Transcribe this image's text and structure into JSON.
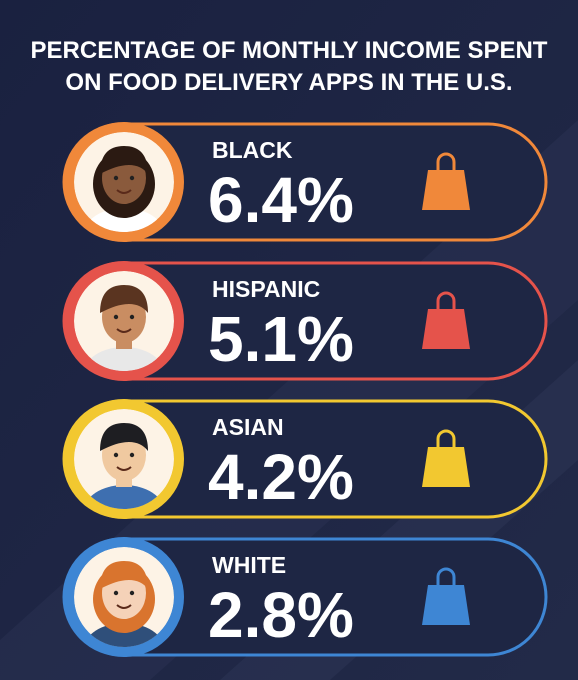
{
  "title": {
    "lines": [
      "PERCENTAGE OF MONTHLY INCOME SPENT",
      "ON FOOD DELIVERY APPS IN THE U.S."
    ]
  },
  "items": [
    {
      "label": "BLACK",
      "value": "6.4%",
      "color": "#f0883a"
    },
    {
      "label": "HISPANIC",
      "value": "5.1%",
      "color": "#e5534b"
    },
    {
      "label": "ASIAN",
      "value": "4.2%",
      "color": "#f2c830"
    },
    {
      "label": "WHITE",
      "value": "2.8%",
      "color": "#3e86d4"
    }
  ]
}
